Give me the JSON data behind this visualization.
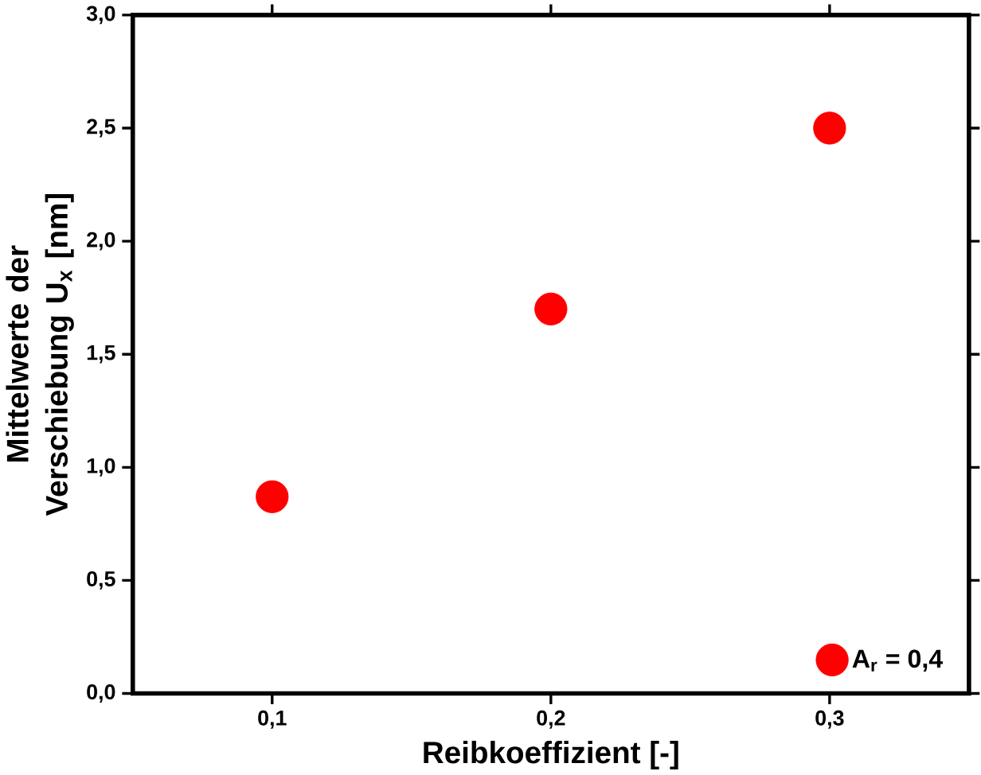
{
  "chart_data": {
    "type": "scatter",
    "xlabel": "Reibkoeffizient [-]",
    "ylabel": "Mittelwerte der Verschiebung U$_{x}$ [nm]",
    "x": [
      0.1,
      0.2,
      0.3
    ],
    "series": [
      {
        "name": "A$_{r}$ = 0,4",
        "color": "#ff0000",
        "values": [
          0.87,
          1.7,
          2.5
        ]
      }
    ],
    "xlim": [
      0.05,
      0.35
    ],
    "ylim": [
      0,
      3
    ],
    "xticks": [
      {
        "value": 0.1,
        "label": "0,1"
      },
      {
        "value": 0.2,
        "label": "0,2"
      },
      {
        "value": 0.3,
        "label": "0,3"
      }
    ],
    "yticks": [
      {
        "value": 0,
        "label": "0,0"
      },
      {
        "value": 0.5,
        "label": "0,5"
      },
      {
        "value": 1,
        "label": "1,0"
      },
      {
        "value": 1.5,
        "label": "1,5"
      },
      {
        "value": 2,
        "label": "2,0"
      },
      {
        "value": 2.5,
        "label": "2,5"
      },
      {
        "value": 3,
        "label": "3,0"
      }
    ],
    "legend": "bottom right",
    "grid": false
  }
}
